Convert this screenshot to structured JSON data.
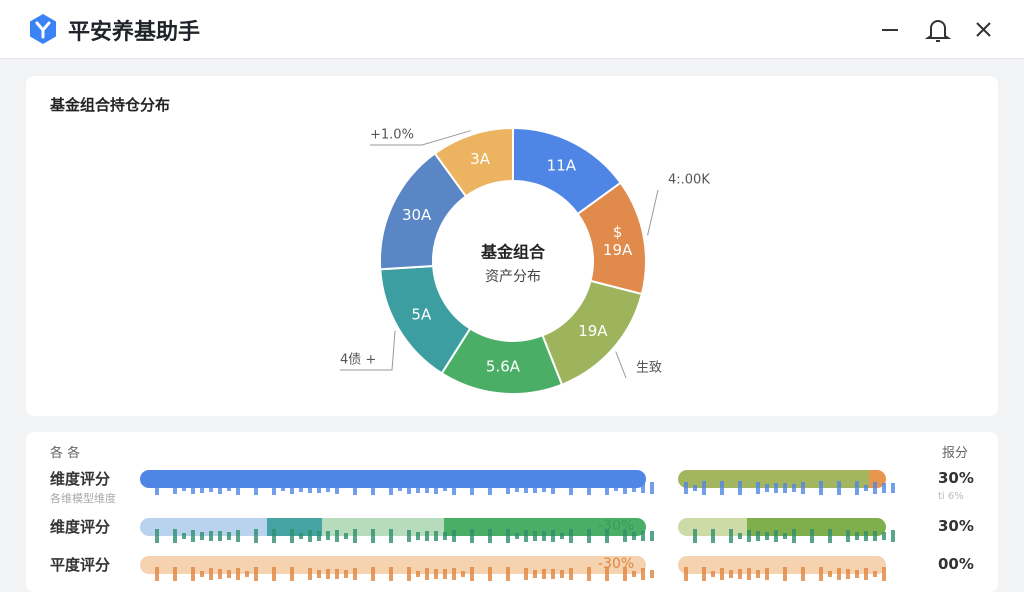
{
  "header": {
    "title": "平安养基助手"
  },
  "chart_data": {
    "type": "donut",
    "title": "基金组合持仓分布",
    "center_title": "基金组合",
    "center_subtitle": "资产分布",
    "categories": [
      "11A",
      "$ 19A",
      "19A",
      "5.6A",
      "5A",
      "30A",
      "3A"
    ],
    "values": [
      15,
      14,
      15,
      15,
      15,
      16,
      10
    ],
    "colors": [
      "#4f86e6",
      "#e08a4c",
      "#9db35c",
      "#4bae66",
      "#3d9ea2",
      "#5b86c6",
      "#ecb460"
    ],
    "callouts": [
      "+1.0%",
      "4:.00K",
      "生致",
      "4债 +"
    ]
  },
  "table": {
    "header": [
      "各 各",
      "报分"
    ],
    "rows": [
      {
        "label": "维度评分",
        "sublabel": "各维模型维度",
        "score": "30%",
        "score_sub": "ti 6%"
      },
      {
        "label": "维度评分",
        "change": "-30%",
        "score": "30%"
      },
      {
        "label": "平度评分",
        "change": "-30%",
        "score": "00%"
      }
    ]
  }
}
